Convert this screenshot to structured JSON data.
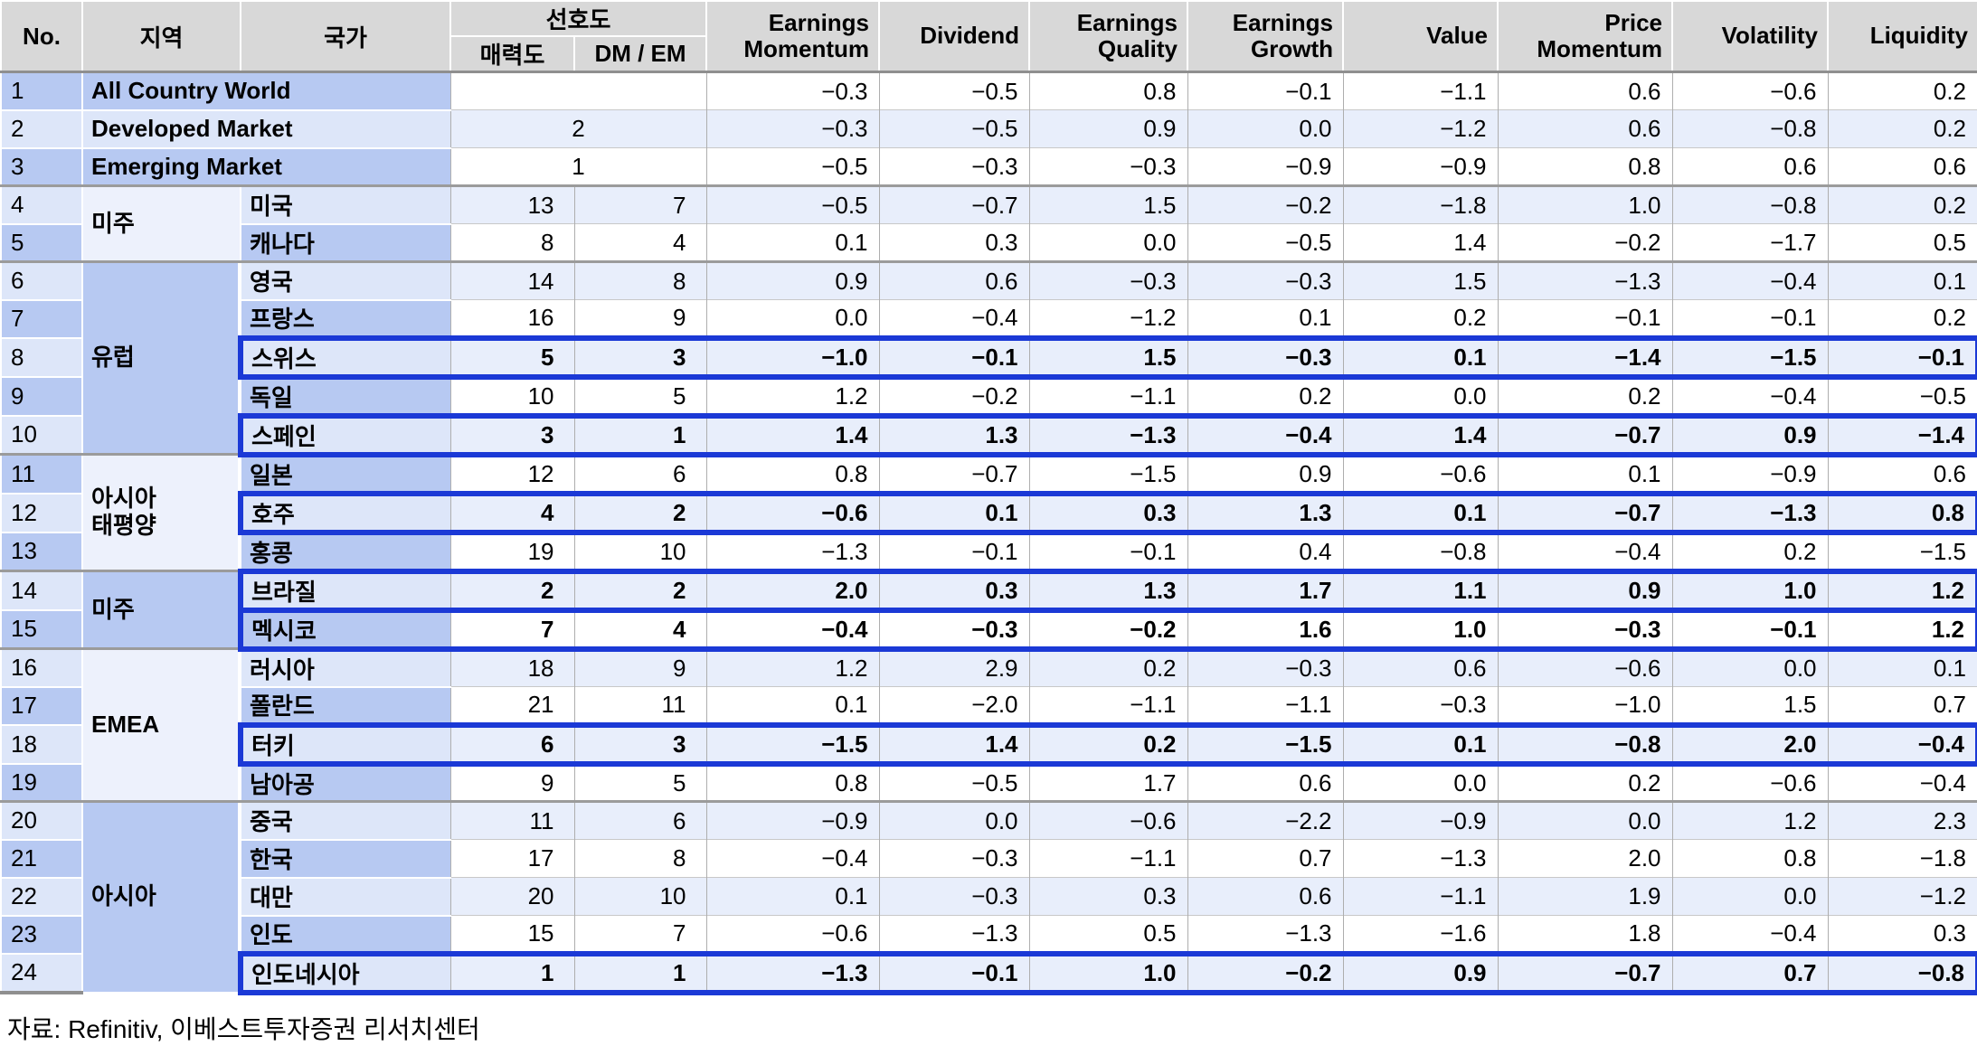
{
  "table": {
    "header": {
      "no": "No.",
      "region": "지역",
      "country": "국가",
      "preference": "선호도",
      "attractiveness": "매력도",
      "dm_em": "DM / EM",
      "factors": [
        "Earnings Momentum",
        "Dividend",
        "Earnings Quality",
        "Earnings Growth",
        "Value",
        "Price Momentum",
        "Volatility",
        "Liquidity"
      ]
    },
    "rows": [
      {
        "no": 1,
        "label": "All Country World",
        "merged": true,
        "pref": "",
        "highlight": false,
        "values": [
          "−0.3",
          "−0.5",
          "0.8",
          "−0.1",
          "−1.1",
          "0.6",
          "−0.6",
          "0.2"
        ]
      },
      {
        "no": 2,
        "label": "Developed Market",
        "merged": true,
        "pref": "2",
        "highlight": false,
        "values": [
          "−0.3",
          "−0.5",
          "0.9",
          "0.0",
          "−1.2",
          "0.6",
          "−0.8",
          "0.2"
        ]
      },
      {
        "no": 3,
        "label": "Emerging Market",
        "merged": true,
        "pref": "1",
        "highlight": false,
        "values": [
          "−0.5",
          "−0.3",
          "−0.3",
          "−0.9",
          "−0.9",
          "0.8",
          "0.6",
          "0.6"
        ]
      },
      {
        "no": 4,
        "region": {
          "name": "미주",
          "span": 2,
          "shade": "light"
        },
        "group_start": true,
        "country": "미국",
        "att": "13",
        "dm": "7",
        "highlight": false,
        "values": [
          "−0.5",
          "−0.7",
          "1.5",
          "−0.2",
          "−1.8",
          "1.0",
          "−0.8",
          "0.2"
        ]
      },
      {
        "no": 5,
        "country": "캐나다",
        "att": "8",
        "dm": "4",
        "highlight": false,
        "values": [
          "0.1",
          "0.3",
          "0.0",
          "−0.5",
          "1.4",
          "−0.2",
          "−1.7",
          "0.5"
        ]
      },
      {
        "no": 6,
        "region": {
          "name": "유럽",
          "span": 5,
          "shade": "dark"
        },
        "group_start": true,
        "country": "영국",
        "att": "14",
        "dm": "8",
        "highlight": false,
        "values": [
          "0.9",
          "0.6",
          "−0.3",
          "−0.3",
          "1.5",
          "−1.3",
          "−0.4",
          "0.1"
        ]
      },
      {
        "no": 7,
        "country": "프랑스",
        "att": "16",
        "dm": "9",
        "highlight": false,
        "values": [
          "0.0",
          "−0.4",
          "−1.2",
          "0.1",
          "0.2",
          "−0.1",
          "−0.1",
          "0.2"
        ]
      },
      {
        "no": 8,
        "country": "스위스",
        "att": "5",
        "dm": "3",
        "highlight": true,
        "values": [
          "−1.0",
          "−0.1",
          "1.5",
          "−0.3",
          "0.1",
          "−1.4",
          "−1.5",
          "−0.1"
        ]
      },
      {
        "no": 9,
        "country": "독일",
        "att": "10",
        "dm": "5",
        "highlight": false,
        "values": [
          "1.2",
          "−0.2",
          "−1.1",
          "0.2",
          "0.0",
          "0.2",
          "−0.4",
          "−0.5"
        ]
      },
      {
        "no": 10,
        "country": "스페인",
        "att": "3",
        "dm": "1",
        "highlight": true,
        "values": [
          "1.4",
          "1.3",
          "−1.3",
          "−0.4",
          "1.4",
          "−0.7",
          "0.9",
          "−1.4"
        ]
      },
      {
        "no": 11,
        "region": {
          "name": "아시아\n태평양",
          "span": 3,
          "shade": "light"
        },
        "group_start": true,
        "country": "일본",
        "att": "12",
        "dm": "6",
        "highlight": false,
        "values": [
          "0.8",
          "−0.7",
          "−1.5",
          "0.9",
          "−0.6",
          "0.1",
          "−0.9",
          "0.6"
        ]
      },
      {
        "no": 12,
        "country": "호주",
        "att": "4",
        "dm": "2",
        "highlight": true,
        "values": [
          "−0.6",
          "0.1",
          "0.3",
          "1.3",
          "0.1",
          "−0.7",
          "−1.3",
          "0.8"
        ]
      },
      {
        "no": 13,
        "country": "홍콩",
        "att": "19",
        "dm": "10",
        "highlight": false,
        "values": [
          "−1.3",
          "−0.1",
          "−0.1",
          "0.4",
          "−0.8",
          "−0.4",
          "0.2",
          "−1.5"
        ]
      },
      {
        "no": 14,
        "region": {
          "name": "미주",
          "span": 2,
          "shade": "dark"
        },
        "group_start": true,
        "country": "브라질",
        "att": "2",
        "dm": "2",
        "highlight": true,
        "values": [
          "2.0",
          "0.3",
          "1.3",
          "1.7",
          "1.1",
          "0.9",
          "1.0",
          "1.2"
        ]
      },
      {
        "no": 15,
        "country": "멕시코",
        "att": "7",
        "dm": "4",
        "highlight": true,
        "values": [
          "−0.4",
          "−0.3",
          "−0.2",
          "1.6",
          "1.0",
          "−0.3",
          "−0.1",
          "1.2"
        ]
      },
      {
        "no": 16,
        "region": {
          "name": "EMEA",
          "span": 4,
          "shade": "light"
        },
        "group_start": true,
        "country": "러시아",
        "att": "18",
        "dm": "9",
        "highlight": false,
        "values": [
          "1.2",
          "2.9",
          "0.2",
          "−0.3",
          "0.6",
          "−0.6",
          "0.0",
          "0.1"
        ]
      },
      {
        "no": 17,
        "country": "폴란드",
        "att": "21",
        "dm": "11",
        "highlight": false,
        "values": [
          "0.1",
          "−2.0",
          "−1.1",
          "−1.1",
          "−0.3",
          "−1.0",
          "1.5",
          "0.7"
        ]
      },
      {
        "no": 18,
        "country": "터키",
        "att": "6",
        "dm": "3",
        "highlight": true,
        "values": [
          "−1.5",
          "1.4",
          "0.2",
          "−1.5",
          "0.1",
          "−0.8",
          "2.0",
          "−0.4"
        ]
      },
      {
        "no": 19,
        "country": "남아공",
        "att": "9",
        "dm": "5",
        "highlight": false,
        "values": [
          "0.8",
          "−0.5",
          "1.7",
          "0.6",
          "0.0",
          "0.2",
          "−0.6",
          "−0.4"
        ]
      },
      {
        "no": 20,
        "region": {
          "name": "아시아",
          "span": 5,
          "shade": "dark"
        },
        "group_start": true,
        "country": "중국",
        "att": "11",
        "dm": "6",
        "highlight": false,
        "values": [
          "−0.9",
          "0.0",
          "−0.6",
          "−2.2",
          "−0.9",
          "0.0",
          "1.2",
          "2.3"
        ]
      },
      {
        "no": 21,
        "country": "한국",
        "att": "17",
        "dm": "8",
        "highlight": false,
        "values": [
          "−0.4",
          "−0.3",
          "−1.1",
          "0.7",
          "−1.3",
          "2.0",
          "0.8",
          "−1.8"
        ]
      },
      {
        "no": 22,
        "country": "대만",
        "att": "20",
        "dm": "10",
        "highlight": false,
        "values": [
          "0.1",
          "−0.3",
          "0.3",
          "0.6",
          "−1.1",
          "1.9",
          "0.0",
          "−1.2"
        ]
      },
      {
        "no": 23,
        "country": "인도",
        "att": "15",
        "dm": "7",
        "highlight": false,
        "values": [
          "−0.6",
          "−1.3",
          "0.5",
          "−1.3",
          "−1.6",
          "1.8",
          "−0.4",
          "0.3"
        ]
      },
      {
        "no": 24,
        "country": "인도네시아",
        "att": "1",
        "dm": "1",
        "highlight": true,
        "values": [
          "−1.3",
          "−0.1",
          "1.0",
          "−0.2",
          "0.9",
          "−0.7",
          "0.7",
          "−0.8"
        ]
      }
    ]
  },
  "colors": {
    "header_bg": "#d8d8d8",
    "label_dark": "#b7c9f2",
    "label_light": "#dde6f9",
    "value_tint": "#e8eefb",
    "highlight_border": "#1b39d6"
  },
  "source": "자료: Refinitiv, 이베스트투자증권 리서치센터"
}
